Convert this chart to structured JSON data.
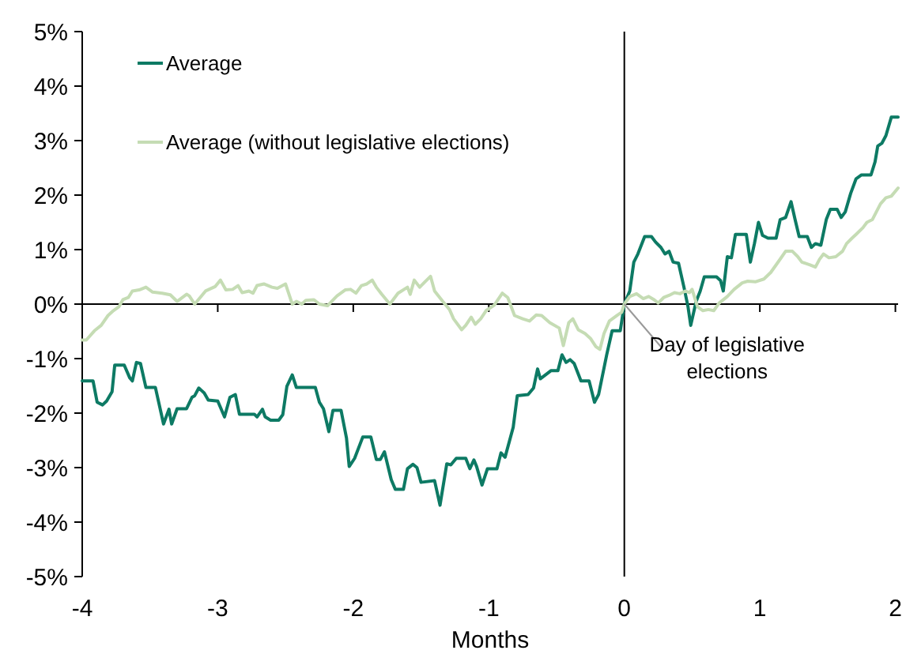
{
  "chart_data": {
    "type": "line",
    "xlabel": "Months",
    "xlim": [
      -4,
      2.02
    ],
    "ylim": [
      -5,
      5
    ],
    "xticks": [
      -4,
      -3,
      -2,
      -1,
      0,
      1,
      2
    ],
    "yticks": [
      {
        "value": -5,
        "label": "-5%"
      },
      {
        "value": -4,
        "label": "-4%"
      },
      {
        "value": -3,
        "label": "-3%"
      },
      {
        "value": -2,
        "label": "-2%"
      },
      {
        "value": -1,
        "label": "-1%"
      },
      {
        "value": 0,
        "label": "0%"
      },
      {
        "value": 1,
        "label": "1%"
      },
      {
        "value": 2,
        "label": "2%"
      },
      {
        "value": 3,
        "label": "3%"
      },
      {
        "value": 4,
        "label": "4%"
      },
      {
        "value": 5,
        "label": "5%"
      }
    ],
    "legend": "top left",
    "marker": "none",
    "line_style": "solid",
    "ref_lines": [
      {
        "axis": "x",
        "value": 0,
        "color": "#000000"
      }
    ],
    "annotations": [
      {
        "text": "Day of legislative elections",
        "x": 0,
        "y": 0
      }
    ],
    "series": [
      {
        "name": "Average",
        "color": "#0d7a64",
        "x": [
          -4,
          -3.92,
          -3.89,
          -3.85,
          -3.82,
          -3.78,
          -3.76,
          -3.69,
          -3.65,
          -3.63,
          -3.6,
          -3.57,
          -3.53,
          -3.46,
          -3.4,
          -3.36,
          -3.34,
          -3.3,
          -3.23,
          -3.19,
          -3.17,
          -3.14,
          -3.1,
          -3.07,
          -3,
          -2.95,
          -2.91,
          -2.87,
          -2.84,
          -2.73,
          -2.71,
          -2.67,
          -2.65,
          -2.61,
          -2.55,
          -2.52,
          -2.49,
          -2.45,
          -2.42,
          -2.28,
          -2.25,
          -2.22,
          -2.18,
          -2.15,
          -2.09,
          -2.05,
          -2.03,
          -1.99,
          -1.93,
          -1.87,
          -1.83,
          -1.8,
          -1.77,
          -1.72,
          -1.69,
          -1.63,
          -1.6,
          -1.56,
          -1.53,
          -1.5,
          -1.4,
          -1.36,
          -1.31,
          -1.28,
          -1.24,
          -1.17,
          -1.14,
          -1.11,
          -1.09,
          -1.05,
          -1.01,
          -0.94,
          -0.91,
          -0.88,
          -0.82,
          -0.79,
          -0.71,
          -0.67,
          -0.64,
          -0.62,
          -0.54,
          -0.49,
          -0.46,
          -0.43,
          -0.4,
          -0.37,
          -0.32,
          -0.26,
          -0.22,
          -0.19,
          -0.13,
          -0.09,
          -0.03,
          0,
          0.04,
          0.07,
          0.1,
          0.15,
          0.2,
          0.23,
          0.27,
          0.3,
          0.33,
          0.36,
          0.4,
          0.44,
          0.47,
          0.49,
          0.53,
          0.56,
          0.59,
          0.68,
          0.71,
          0.73,
          0.76,
          0.79,
          0.82,
          0.9,
          0.93,
          0.96,
          0.99,
          1.02,
          1.06,
          1.12,
          1.15,
          1.19,
          1.23,
          1.26,
          1.29,
          1.35,
          1.38,
          1.41,
          1.45,
          1.49,
          1.52,
          1.57,
          1.6,
          1.63,
          1.67,
          1.71,
          1.75,
          1.82,
          1.85,
          1.87,
          1.9,
          1.93,
          1.97,
          2.02
        ],
        "values": [
          -1.41,
          -1.41,
          -1.8,
          -1.85,
          -1.78,
          -1.61,
          -1.12,
          -1.12,
          -1.35,
          -1.41,
          -1.07,
          -1.09,
          -1.53,
          -1.53,
          -2.2,
          -1.93,
          -2.2,
          -1.92,
          -1.92,
          -1.71,
          -1.68,
          -1.54,
          -1.63,
          -1.76,
          -1.78,
          -2.07,
          -1.71,
          -1.66,
          -2.02,
          -2.02,
          -2.07,
          -1.93,
          -2.07,
          -2.13,
          -2.13,
          -2.03,
          -1.51,
          -1.3,
          -1.53,
          -1.53,
          -1.8,
          -1.92,
          -2.34,
          -1.95,
          -1.95,
          -2.46,
          -2.98,
          -2.83,
          -2.44,
          -2.44,
          -2.85,
          -2.85,
          -2.71,
          -3.22,
          -3.4,
          -3.4,
          -3.02,
          -2.94,
          -3,
          -3.27,
          -3.24,
          -3.69,
          -2.93,
          -2.95,
          -2.83,
          -2.83,
          -3.02,
          -2.86,
          -2.98,
          -3.32,
          -3.02,
          -3.02,
          -2.73,
          -2.81,
          -2.26,
          -1.68,
          -1.66,
          -1.54,
          -1.19,
          -1.37,
          -1.22,
          -1.22,
          -0.93,
          -1.07,
          -1.02,
          -1.09,
          -1.41,
          -1.41,
          -1.8,
          -1.66,
          -0.93,
          -0.49,
          -0.49,
          0,
          0.24,
          0.77,
          0.92,
          1.24,
          1.24,
          1.14,
          1.04,
          0.92,
          0.97,
          0.77,
          0.75,
          0.31,
          -0.05,
          -0.39,
          0.05,
          0.24,
          0.5,
          0.5,
          0.43,
          0.24,
          0.87,
          0.85,
          1.28,
          1.28,
          0.77,
          1.11,
          1.5,
          1.26,
          1.21,
          1.21,
          1.55,
          1.59,
          1.88,
          1.55,
          1.24,
          1.24,
          1.04,
          1.11,
          1.08,
          1.55,
          1.74,
          1.74,
          1.59,
          1.69,
          2.03,
          2.3,
          2.37,
          2.37,
          2.61,
          2.9,
          2.95,
          3.09,
          3.43,
          3.43
        ]
      },
      {
        "name": "Average (without legislative elections)",
        "color": "#c5dcb4",
        "x": [
          -4,
          -3.97,
          -3.91,
          -3.86,
          -3.81,
          -3.77,
          -3.73,
          -3.7,
          -3.66,
          -3.63,
          -3.58,
          -3.53,
          -3.48,
          -3.41,
          -3.35,
          -3.3,
          -3.23,
          -3.21,
          -3.17,
          -3.13,
          -3.09,
          -3.02,
          -2.98,
          -2.94,
          -2.89,
          -2.85,
          -2.82,
          -2.77,
          -2.74,
          -2.71,
          -2.66,
          -2.6,
          -2.56,
          -2.5,
          -2.45,
          -2.42,
          -2.38,
          -2.35,
          -2.29,
          -2.25,
          -2.19,
          -2.14,
          -2.12,
          -2.06,
          -2.02,
          -1.98,
          -1.94,
          -1.9,
          -1.86,
          -1.83,
          -1.79,
          -1.73,
          -1.67,
          -1.6,
          -1.58,
          -1.55,
          -1.51,
          -1.47,
          -1.43,
          -1.4,
          -1.34,
          -1.29,
          -1.26,
          -1.2,
          -1.17,
          -1.13,
          -1.1,
          -1.06,
          -1.02,
          -0.96,
          -0.9,
          -0.86,
          -0.81,
          -0.75,
          -0.7,
          -0.65,
          -0.61,
          -0.55,
          -0.48,
          -0.45,
          -0.41,
          -0.38,
          -0.34,
          -0.29,
          -0.25,
          -0.21,
          -0.18,
          -0.15,
          -0.11,
          -0.05,
          -0.02,
          0,
          0.04,
          0.09,
          0.14,
          0.18,
          0.22,
          0.25,
          0.29,
          0.33,
          0.37,
          0.41,
          0.45,
          0.48,
          0.5,
          0.54,
          0.58,
          0.62,
          0.66,
          0.7,
          0.76,
          0.81,
          0.87,
          0.91,
          0.97,
          1.03,
          1.08,
          1.14,
          1.19,
          1.24,
          1.28,
          1.31,
          1.37,
          1.41,
          1.44,
          1.47,
          1.51,
          1.56,
          1.61,
          1.64,
          1.68,
          1.71,
          1.76,
          1.79,
          1.83,
          1.89,
          1.93,
          1.97,
          2.02
        ],
        "values": [
          -0.66,
          -0.66,
          -0.49,
          -0.39,
          -0.21,
          -0.12,
          -0.05,
          0.08,
          0.12,
          0.24,
          0.26,
          0.31,
          0.22,
          0.2,
          0.17,
          0.05,
          0.18,
          0.15,
          0,
          0.12,
          0.24,
          0.32,
          0.44,
          0.26,
          0.27,
          0.34,
          0.21,
          0.24,
          0.2,
          0.34,
          0.37,
          0.31,
          0.29,
          0.37,
          0,
          0.05,
          0,
          0.07,
          0.08,
          0,
          -0.03,
          0.1,
          0.15,
          0.26,
          0.27,
          0.2,
          0.34,
          0.37,
          0.44,
          0.31,
          0.18,
          0,
          0.2,
          0.31,
          0.18,
          0.44,
          0.31,
          0.41,
          0.51,
          0.24,
          0.05,
          -0.1,
          -0.27,
          -0.47,
          -0.39,
          -0.24,
          -0.37,
          -0.27,
          -0.12,
          -0.02,
          0.2,
          0.12,
          -0.21,
          -0.27,
          -0.31,
          -0.2,
          -0.21,
          -0.34,
          -0.44,
          -0.76,
          -0.34,
          -0.27,
          -0.47,
          -0.54,
          -0.63,
          -0.78,
          -0.83,
          -0.54,
          -0.31,
          -0.2,
          -0.15,
          0,
          0.14,
          0.19,
          0.1,
          0.14,
          0.08,
          0.02,
          0.12,
          0.16,
          0.21,
          0.19,
          0.24,
          0.21,
          0.27,
          -0.05,
          -0.12,
          -0.1,
          -0.12,
          0.02,
          0.14,
          0.27,
          0.39,
          0.42,
          0.41,
          0.46,
          0.58,
          0.79,
          0.97,
          0.97,
          0.87,
          0.77,
          0.72,
          0.68,
          0.82,
          0.92,
          0.85,
          0.87,
          0.97,
          1.11,
          1.21,
          1.28,
          1.4,
          1.5,
          1.55,
          1.84,
          1.95,
          1.98,
          2.13
        ]
      }
    ]
  }
}
